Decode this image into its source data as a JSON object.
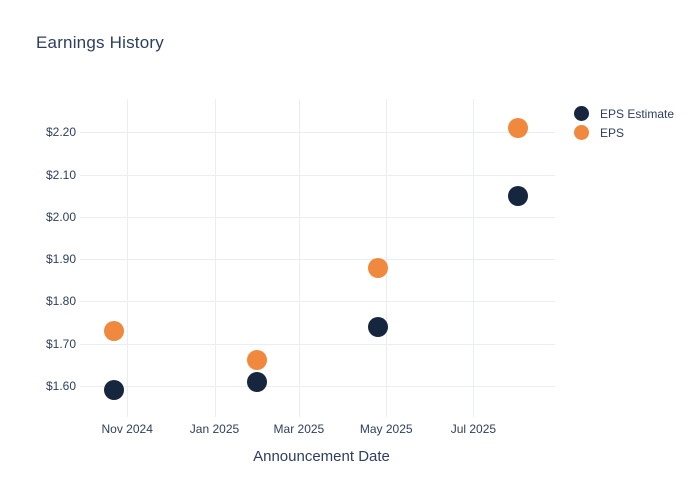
{
  "chart_data": {
    "type": "scatter",
    "title": "Earnings History",
    "xlabel": "Announcement Date",
    "ylabel": "",
    "x_dates_estimated": [
      "2024-10-23",
      "2025-01-31",
      "2025-04-25",
      "2025-08-01"
    ],
    "series": [
      {
        "name": "EPS Estimate",
        "color": "#16263f",
        "values": [
          1.59,
          1.61,
          1.74,
          2.05
        ]
      },
      {
        "name": "EPS",
        "color": "#f0883e",
        "values": [
          1.73,
          1.66,
          1.88,
          2.21
        ]
      }
    ],
    "x_axis": {
      "ticks": [
        {
          "label": "Nov 2024",
          "date": "2024-11-01"
        },
        {
          "label": "Jan 2025",
          "date": "2025-01-01"
        },
        {
          "label": "Mar 2025",
          "date": "2025-03-01"
        },
        {
          "label": "May 2025",
          "date": "2025-05-01"
        },
        {
          "label": "Jul 2025",
          "date": "2025-07-01"
        }
      ],
      "range_estimated": [
        "2024-09-29",
        "2025-08-27"
      ]
    },
    "y_axis": {
      "ticks": [
        {
          "label": "$2.20",
          "value": 2.2
        },
        {
          "label": "$2.10",
          "value": 2.1
        },
        {
          "label": "$2.00",
          "value": 2.0
        },
        {
          "label": "$1.90",
          "value": 1.9
        },
        {
          "label": "$1.80",
          "value": 1.8
        },
        {
          "label": "$1.70",
          "value": 1.7
        },
        {
          "label": "$1.60",
          "value": 1.6
        }
      ],
      "range_estimated": [
        1.526,
        2.279
      ]
    },
    "grid": true,
    "legend_position": "top-right",
    "marker_size_px": 20
  },
  "styles": {
    "background": "#ffffff",
    "text_color": "#2e3f5c",
    "grid_color": "#e9eef6"
  }
}
